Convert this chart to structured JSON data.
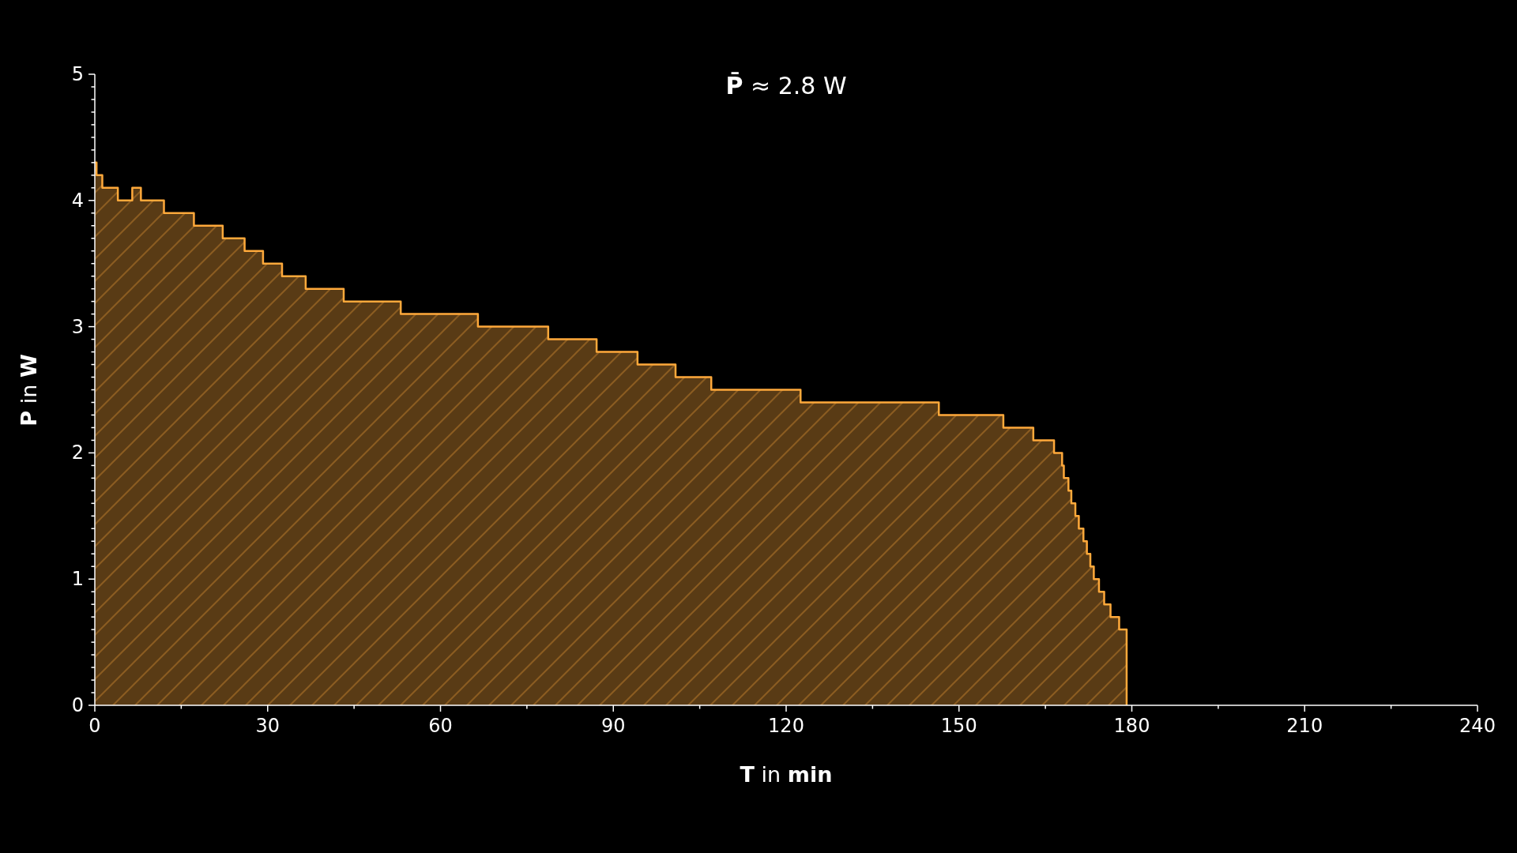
{
  "chart_data": {
    "type": "area",
    "title": "P̄ ≈ 2.8 W",
    "xlabel": "T in min",
    "ylabel": "P in W",
    "x": [
      0,
      0.3,
      0.3,
      1.3,
      1.3,
      4.0,
      4.0,
      6.5,
      6.5,
      8.0,
      8.0,
      12.0,
      12.0,
      17.2,
      17.2,
      22.2,
      22.2,
      26.0,
      26.0,
      29.2,
      29.2,
      32.5,
      32.5,
      36.6,
      36.6,
      43.2,
      43.2,
      53.1,
      53.1,
      66.5,
      66.5,
      78.7,
      78.7,
      87.1,
      87.1,
      94.2,
      94.2,
      100.8,
      100.8,
      107.0,
      107.0,
      122.5,
      122.5,
      146.5,
      146.5,
      157.7,
      157.7,
      162.9,
      162.9,
      166.5,
      166.5,
      167.9,
      167.9,
      168.2,
      168.2,
      169.0,
      169.0,
      169.5,
      169.5,
      170.2,
      170.2,
      170.8,
      170.8,
      171.6,
      171.6,
      172.2,
      172.2,
      172.8,
      172.8,
      173.4,
      173.4,
      174.3,
      174.3,
      175.2,
      175.2,
      176.3,
      176.3,
      177.8,
      177.8,
      179.1,
      179.1
    ],
    "series": [
      {
        "color": "#ffa93b",
        "values": [
          4.3,
          4.3,
          4.2,
          4.2,
          4.1,
          4.1,
          4.0,
          4.0,
          4.1,
          4.1,
          4.0,
          4.0,
          3.9,
          3.9,
          3.8,
          3.8,
          3.7,
          3.7,
          3.6,
          3.6,
          3.5,
          3.5,
          3.4,
          3.4,
          3.3,
          3.3,
          3.2,
          3.2,
          3.1,
          3.1,
          3.0,
          3.0,
          2.9,
          2.9,
          2.8,
          2.8,
          2.7,
          2.7,
          2.6,
          2.6,
          2.5,
          2.5,
          2.4,
          2.4,
          2.3,
          2.3,
          2.2,
          2.2,
          2.1,
          2.1,
          2.0,
          2.0,
          1.9,
          1.9,
          1.8,
          1.8,
          1.7,
          1.7,
          1.6,
          1.6,
          1.5,
          1.5,
          1.4,
          1.4,
          1.3,
          1.3,
          1.2,
          1.2,
          1.1,
          1.1,
          1.0,
          1.0,
          0.9,
          0.9,
          0.8,
          0.8,
          0.7,
          0.7,
          0.6,
          0.6,
          0
        ]
      }
    ],
    "xlim": [
      0,
      240
    ],
    "ylim": [
      0,
      5
    ],
    "xticks": [
      0,
      {
        "value": 15,
        "label": null
      },
      30,
      {
        "value": 45,
        "label": null
      },
      60,
      {
        "value": 75,
        "label": null
      },
      90,
      {
        "value": 105,
        "label": null
      },
      120,
      {
        "value": 135,
        "label": null
      },
      150,
      {
        "value": 165,
        "label": null
      },
      180,
      {
        "value": 195,
        "label": null
      },
      210,
      {
        "value": 225,
        "label": null
      },
      240
    ],
    "yticks": [
      0,
      {
        "value": 0.1,
        "label": null
      },
      {
        "value": 0.2,
        "label": null
      },
      {
        "value": 0.3,
        "label": null
      },
      {
        "value": 0.4,
        "label": null
      },
      {
        "value": 0.5,
        "label": null
      },
      {
        "value": 0.6,
        "label": null
      },
      {
        "value": 0.7,
        "label": null
      },
      {
        "value": 0.8,
        "label": null
      },
      {
        "value": 0.9,
        "label": null
      },
      1,
      {
        "value": 1.1,
        "label": null
      },
      {
        "value": 1.2,
        "label": null
      },
      {
        "value": 1.3,
        "label": null
      },
      {
        "value": 1.4,
        "label": null
      },
      {
        "value": 1.5,
        "label": null
      },
      {
        "value": 1.6,
        "label": null
      },
      {
        "value": 1.7,
        "label": null
      },
      {
        "value": 1.8,
        "label": null
      },
      {
        "value": 1.9,
        "label": null
      },
      2,
      {
        "value": 2.1,
        "label": null
      },
      {
        "value": 2.2,
        "label": null
      },
      {
        "value": 2.3,
        "label": null
      },
      {
        "value": 2.4,
        "label": null
      },
      {
        "value": 2.5,
        "label": null
      },
      {
        "value": 2.6,
        "label": null
      },
      {
        "value": 2.7,
        "label": null
      },
      {
        "value": 2.8,
        "label": null
      },
      {
        "value": 2.9,
        "label": null
      },
      3,
      {
        "value": 3.1,
        "label": null
      },
      {
        "value": 3.2,
        "label": null
      },
      {
        "value": 3.3,
        "label": null
      },
      {
        "value": 3.4,
        "label": null
      },
      {
        "value": 3.5,
        "label": null
      },
      {
        "value": 3.6,
        "label": null
      },
      {
        "value": 3.7,
        "label": null
      },
      {
        "value": 3.8,
        "label": null
      },
      {
        "value": 3.9,
        "label": null
      },
      4,
      {
        "value": 4.1,
        "label": null
      },
      {
        "value": 4.2,
        "label": null
      },
      {
        "value": 4.3,
        "label": null
      },
      {
        "value": 4.4,
        "label": null
      },
      {
        "value": 4.5,
        "label": null
      },
      {
        "value": 4.6,
        "label": null
      },
      {
        "value": 4.7,
        "label": null
      },
      {
        "value": 4.8,
        "label": null
      },
      {
        "value": 4.9,
        "label": null
      },
      5
    ]
  }
}
